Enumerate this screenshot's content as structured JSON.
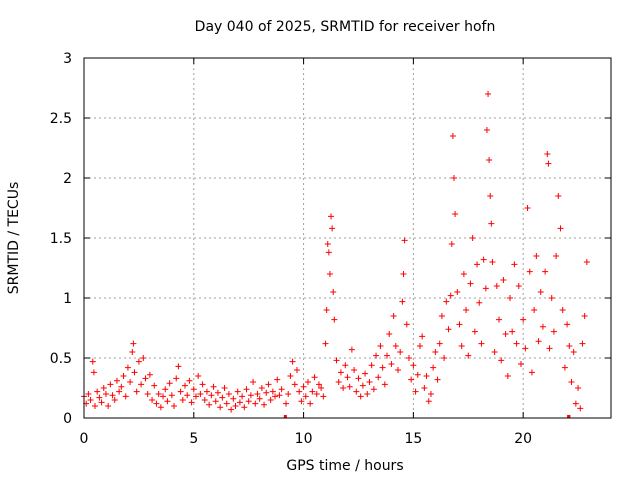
{
  "chart_data": {
    "type": "scatter",
    "title": "Day 040 of 2025, SRMTID for receiver hofn",
    "xlabel": "GPS time / hours",
    "ylabel": "SRMTID / TECUs",
    "xlim": [
      0,
      24
    ],
    "ylim": [
      0,
      3
    ],
    "xticks": [
      0,
      5,
      10,
      15,
      20
    ],
    "xtick_labels": [
      "0",
      "5",
      "10",
      "15",
      "20"
    ],
    "yticks": [
      0,
      0.5,
      1,
      1.5,
      2,
      2.5,
      3
    ],
    "ytick_labels": [
      "0",
      "0.5",
      "1",
      "1.5",
      "2",
      "2.5",
      "3"
    ],
    "grid": true,
    "marker": "+",
    "series_color": "#ff0000",
    "series": [
      {
        "name": "SRMTID",
        "points": [
          [
            0.0,
            0.18
          ],
          [
            0.1,
            0.12
          ],
          [
            0.2,
            0.2
          ],
          [
            0.3,
            0.15
          ],
          [
            0.4,
            0.47
          ],
          [
            0.45,
            0.38
          ],
          [
            0.5,
            0.1
          ],
          [
            0.6,
            0.22
          ],
          [
            0.7,
            0.17
          ],
          [
            0.8,
            0.13
          ],
          [
            0.9,
            0.25
          ],
          [
            1.0,
            0.2
          ],
          [
            1.1,
            0.1
          ],
          [
            1.2,
            0.28
          ],
          [
            1.3,
            0.19
          ],
          [
            1.4,
            0.15
          ],
          [
            1.5,
            0.31
          ],
          [
            1.6,
            0.22
          ],
          [
            1.7,
            0.26
          ],
          [
            1.8,
            0.35
          ],
          [
            1.9,
            0.18
          ],
          [
            2.0,
            0.42
          ],
          [
            2.1,
            0.3
          ],
          [
            2.2,
            0.55
          ],
          [
            2.25,
            0.62
          ],
          [
            2.3,
            0.38
          ],
          [
            2.4,
            0.22
          ],
          [
            2.5,
            0.47
          ],
          [
            2.6,
            0.28
          ],
          [
            2.7,
            0.5
          ],
          [
            2.8,
            0.33
          ],
          [
            2.9,
            0.2
          ],
          [
            3.0,
            0.36
          ],
          [
            3.1,
            0.15
          ],
          [
            3.2,
            0.27
          ],
          [
            3.3,
            0.12
          ],
          [
            3.4,
            0.2
          ],
          [
            3.5,
            0.09
          ],
          [
            3.6,
            0.18
          ],
          [
            3.7,
            0.24
          ],
          [
            3.8,
            0.14
          ],
          [
            3.9,
            0.29
          ],
          [
            4.0,
            0.19
          ],
          [
            4.1,
            0.1
          ],
          [
            4.2,
            0.33
          ],
          [
            4.3,
            0.43
          ],
          [
            4.4,
            0.22
          ],
          [
            4.5,
            0.15
          ],
          [
            4.6,
            0.27
          ],
          [
            4.7,
            0.19
          ],
          [
            4.8,
            0.31
          ],
          [
            4.9,
            0.13
          ],
          [
            5.0,
            0.24
          ],
          [
            5.1,
            0.18
          ],
          [
            5.2,
            0.35
          ],
          [
            5.3,
            0.2
          ],
          [
            5.4,
            0.28
          ],
          [
            5.5,
            0.15
          ],
          [
            5.6,
            0.22
          ],
          [
            5.7,
            0.11
          ],
          [
            5.8,
            0.19
          ],
          [
            5.9,
            0.26
          ],
          [
            6.0,
            0.14
          ],
          [
            6.1,
            0.21
          ],
          [
            6.2,
            0.09
          ],
          [
            6.3,
            0.17
          ],
          [
            6.4,
            0.25
          ],
          [
            6.5,
            0.12
          ],
          [
            6.6,
            0.2
          ],
          [
            6.7,
            0.07
          ],
          [
            6.8,
            0.16
          ],
          [
            6.9,
            0.1
          ],
          [
            7.0,
            0.22
          ],
          [
            7.1,
            0.13
          ],
          [
            7.2,
            0.18
          ],
          [
            7.3,
            0.09
          ],
          [
            7.4,
            0.24
          ],
          [
            7.5,
            0.14
          ],
          [
            7.6,
            0.19
          ],
          [
            7.7,
            0.3
          ],
          [
            7.8,
            0.12
          ],
          [
            7.9,
            0.2
          ],
          [
            8.0,
            0.16
          ],
          [
            8.1,
            0.25
          ],
          [
            8.2,
            0.11
          ],
          [
            8.3,
            0.21
          ],
          [
            8.4,
            0.28
          ],
          [
            8.5,
            0.15
          ],
          [
            8.6,
            0.22
          ],
          [
            8.7,
            0.18
          ],
          [
            8.8,
            0.32
          ],
          [
            8.9,
            0.19
          ],
          [
            9.0,
            0.24
          ],
          [
            9.2,
            0.12
          ],
          [
            9.3,
            0.2
          ],
          [
            9.4,
            0.35
          ],
          [
            9.5,
            0.47
          ],
          [
            9.6,
            0.28
          ],
          [
            9.7,
            0.4
          ],
          [
            9.8,
            0.22
          ],
          [
            9.9,
            0.14
          ],
          [
            10.0,
            0.26
          ],
          [
            10.1,
            0.18
          ],
          [
            10.2,
            0.3
          ],
          [
            10.3,
            0.12
          ],
          [
            10.4,
            0.22
          ],
          [
            10.5,
            0.34
          ],
          [
            10.6,
            0.2
          ],
          [
            10.7,
            0.28
          ],
          [
            10.8,
            0.25
          ],
          [
            10.9,
            0.18
          ],
          [
            11.0,
            0.62
          ],
          [
            11.05,
            0.9
          ],
          [
            11.1,
            1.45
          ],
          [
            11.15,
            1.38
          ],
          [
            11.2,
            1.2
          ],
          [
            11.25,
            1.68
          ],
          [
            11.3,
            1.58
          ],
          [
            11.35,
            1.05
          ],
          [
            11.4,
            0.82
          ],
          [
            11.5,
            0.48
          ],
          [
            11.6,
            0.3
          ],
          [
            11.7,
            0.38
          ],
          [
            11.8,
            0.25
          ],
          [
            11.9,
            0.44
          ],
          [
            12.0,
            0.34
          ],
          [
            12.1,
            0.26
          ],
          [
            12.2,
            0.57
          ],
          [
            12.3,
            0.4
          ],
          [
            12.4,
            0.22
          ],
          [
            12.5,
            0.33
          ],
          [
            12.6,
            0.18
          ],
          [
            12.7,
            0.27
          ],
          [
            12.8,
            0.37
          ],
          [
            12.9,
            0.2
          ],
          [
            13.0,
            0.3
          ],
          [
            13.1,
            0.44
          ],
          [
            13.2,
            0.24
          ],
          [
            13.3,
            0.52
          ],
          [
            13.4,
            0.34
          ],
          [
            13.5,
            0.6
          ],
          [
            13.6,
            0.42
          ],
          [
            13.7,
            0.28
          ],
          [
            13.8,
            0.52
          ],
          [
            13.9,
            0.7
          ],
          [
            14.0,
            0.45
          ],
          [
            14.1,
            0.85
          ],
          [
            14.2,
            0.6
          ],
          [
            14.3,
            0.4
          ],
          [
            14.4,
            0.55
          ],
          [
            14.5,
            0.97
          ],
          [
            14.55,
            1.2
          ],
          [
            14.6,
            1.48
          ],
          [
            14.7,
            0.78
          ],
          [
            14.8,
            0.5
          ],
          [
            14.9,
            0.32
          ],
          [
            15.0,
            0.44
          ],
          [
            15.1,
            0.22
          ],
          [
            15.2,
            0.36
          ],
          [
            15.3,
            0.6
          ],
          [
            15.4,
            0.68
          ],
          [
            15.5,
            0.25
          ],
          [
            15.6,
            0.35
          ],
          [
            15.7,
            0.14
          ],
          [
            15.8,
            0.2
          ],
          [
            15.9,
            0.42
          ],
          [
            16.0,
            0.55
          ],
          [
            16.1,
            0.32
          ],
          [
            16.2,
            0.62
          ],
          [
            16.3,
            0.85
          ],
          [
            16.4,
            0.5
          ],
          [
            16.5,
            0.97
          ],
          [
            16.6,
            0.74
          ],
          [
            16.7,
            1.02
          ],
          [
            16.75,
            1.45
          ],
          [
            16.8,
            2.35
          ],
          [
            16.85,
            2.0
          ],
          [
            16.9,
            1.7
          ],
          [
            17.0,
            1.05
          ],
          [
            17.1,
            0.78
          ],
          [
            17.2,
            0.6
          ],
          [
            17.3,
            1.2
          ],
          [
            17.4,
            0.9
          ],
          [
            17.5,
            0.52
          ],
          [
            17.6,
            1.12
          ],
          [
            17.7,
            1.5
          ],
          [
            17.8,
            0.72
          ],
          [
            17.9,
            1.28
          ],
          [
            18.0,
            0.96
          ],
          [
            18.1,
            0.62
          ],
          [
            18.2,
            1.32
          ],
          [
            18.3,
            1.08
          ],
          [
            18.35,
            2.4
          ],
          [
            18.4,
            2.7
          ],
          [
            18.45,
            2.15
          ],
          [
            18.5,
            1.85
          ],
          [
            18.55,
            1.62
          ],
          [
            18.6,
            1.3
          ],
          [
            18.7,
            0.55
          ],
          [
            18.8,
            1.1
          ],
          [
            18.9,
            0.82
          ],
          [
            19.0,
            0.48
          ],
          [
            19.1,
            1.15
          ],
          [
            19.2,
            0.7
          ],
          [
            19.3,
            0.35
          ],
          [
            19.4,
            1.0
          ],
          [
            19.5,
            0.72
          ],
          [
            19.6,
            1.28
          ],
          [
            19.7,
            0.62
          ],
          [
            19.8,
            1.1
          ],
          [
            19.9,
            0.45
          ],
          [
            20.0,
            0.82
          ],
          [
            20.1,
            0.58
          ],
          [
            20.2,
            1.75
          ],
          [
            20.3,
            1.22
          ],
          [
            20.4,
            0.38
          ],
          [
            20.5,
            0.9
          ],
          [
            20.6,
            1.35
          ],
          [
            20.7,
            0.64
          ],
          [
            20.8,
            1.05
          ],
          [
            20.9,
            0.76
          ],
          [
            21.0,
            1.22
          ],
          [
            21.1,
            2.2
          ],
          [
            21.15,
            2.12
          ],
          [
            21.2,
            0.58
          ],
          [
            21.3,
            1.0
          ],
          [
            21.4,
            0.72
          ],
          [
            21.5,
            1.35
          ],
          [
            21.6,
            1.85
          ],
          [
            21.7,
            1.58
          ],
          [
            21.8,
            0.9
          ],
          [
            21.9,
            0.42
          ],
          [
            22.0,
            0.78
          ],
          [
            22.1,
            0.6
          ],
          [
            22.2,
            0.3
          ],
          [
            22.3,
            0.55
          ],
          [
            22.4,
            0.12
          ],
          [
            22.5,
            0.25
          ],
          [
            22.6,
            0.08
          ],
          [
            22.7,
            0.62
          ],
          [
            22.8,
            0.85
          ],
          [
            22.9,
            1.3
          ]
        ]
      }
    ],
    "gaps_markers": [
      {
        "x_from": 9.1,
        "x_to": 9.2,
        "y": 0
      },
      {
        "x_from": 22.0,
        "x_to": 22.15,
        "y": 0
      }
    ]
  }
}
